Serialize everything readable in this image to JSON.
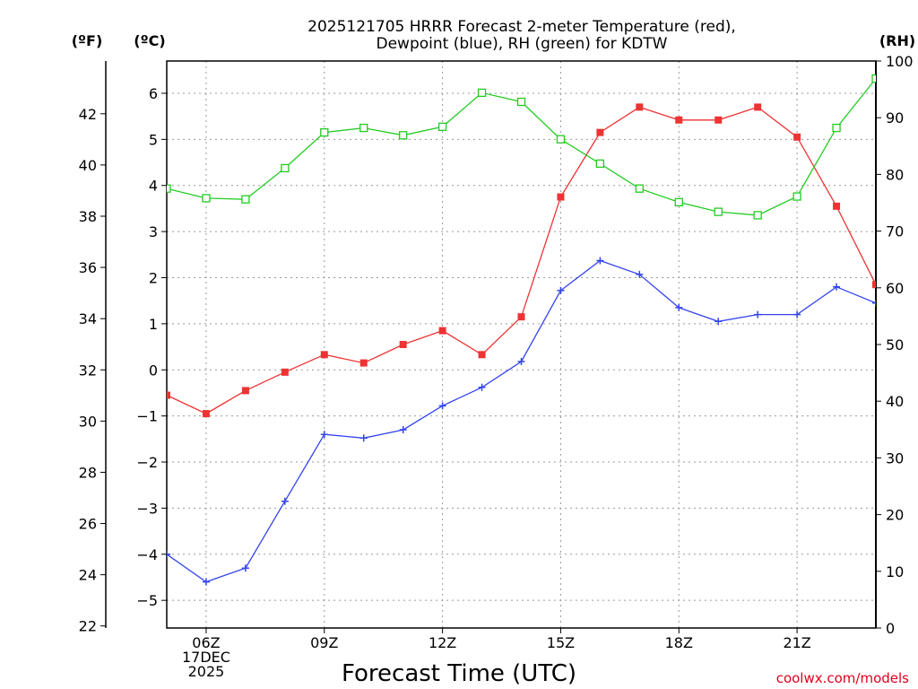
{
  "chart_data": {
    "type": "line",
    "title": [
      "2025121705 HRRR Forecast 2-meter Temperature (red),",
      "Dewpoint (blue), RH (green) for KDTW"
    ],
    "xlabel": "Forecast Time (UTC)",
    "credit": "coolwx.com/models",
    "units": {
      "fahrenheit": "(ºF)",
      "celsius": "(ºC)",
      "rh": "(RH)"
    },
    "x_hours": [
      5,
      6,
      7,
      8,
      9,
      10,
      11,
      12,
      13,
      14,
      15,
      16,
      17,
      18,
      19,
      20,
      21,
      22,
      23
    ],
    "xlim": [
      5,
      23
    ],
    "x_ticks": [
      {
        "hour": 6,
        "lines": [
          "06Z",
          "17DEC",
          "2025"
        ]
      },
      {
        "hour": 9,
        "lines": [
          "09Z"
        ]
      },
      {
        "hour": 12,
        "lines": [
          "12Z"
        ]
      },
      {
        "hour": 15,
        "lines": [
          "15Z"
        ]
      },
      {
        "hour": 18,
        "lines": [
          "18Z"
        ]
      },
      {
        "hour": 21,
        "lines": [
          "21Z"
        ]
      }
    ],
    "celsius_axis": {
      "range": [
        -5.6,
        6.7
      ],
      "ticks": [
        -5,
        -4,
        -3,
        -2,
        -1,
        0,
        1,
        2,
        3,
        4,
        5,
        6
      ]
    },
    "fahrenheit_axis": {
      "ticks": [
        22,
        24,
        26,
        28,
        30,
        32,
        34,
        36,
        38,
        40,
        42
      ]
    },
    "rh_axis": {
      "range": [
        0,
        100
      ],
      "ticks": [
        0,
        10,
        20,
        30,
        40,
        50,
        60,
        70,
        80,
        90,
        100
      ]
    },
    "series": [
      {
        "name": "Temperature",
        "axis": "celsius",
        "color": "#ee3333",
        "marker": "filled-square",
        "values": [
          -0.55,
          -0.95,
          -0.45,
          -0.05,
          0.33,
          0.15,
          0.55,
          0.85,
          0.33,
          1.15,
          3.75,
          5.15,
          5.7,
          5.42,
          5.42,
          5.7,
          5.05,
          3.55,
          1.85
        ]
      },
      {
        "name": "Dewpoint",
        "axis": "celsius",
        "color": "#3344ee",
        "marker": "plus",
        "values": [
          -4.0,
          -4.6,
          -4.3,
          -2.85,
          -1.4,
          -1.48,
          -1.3,
          -0.78,
          -0.38,
          0.18,
          1.72,
          2.37,
          2.07,
          1.35,
          1.05,
          1.2,
          1.2,
          1.8,
          1.45
        ]
      },
      {
        "name": "RH",
        "axis": "rh",
        "color": "#22cc22",
        "marker": "open-square",
        "values": [
          77.5,
          75.8,
          75.6,
          81.1,
          87.4,
          88.2,
          86.9,
          88.4,
          94.4,
          92.8,
          86.2,
          81.9,
          77.5,
          75.1,
          73.4,
          72.8,
          76.1,
          88.2,
          96.9
        ]
      }
    ]
  }
}
